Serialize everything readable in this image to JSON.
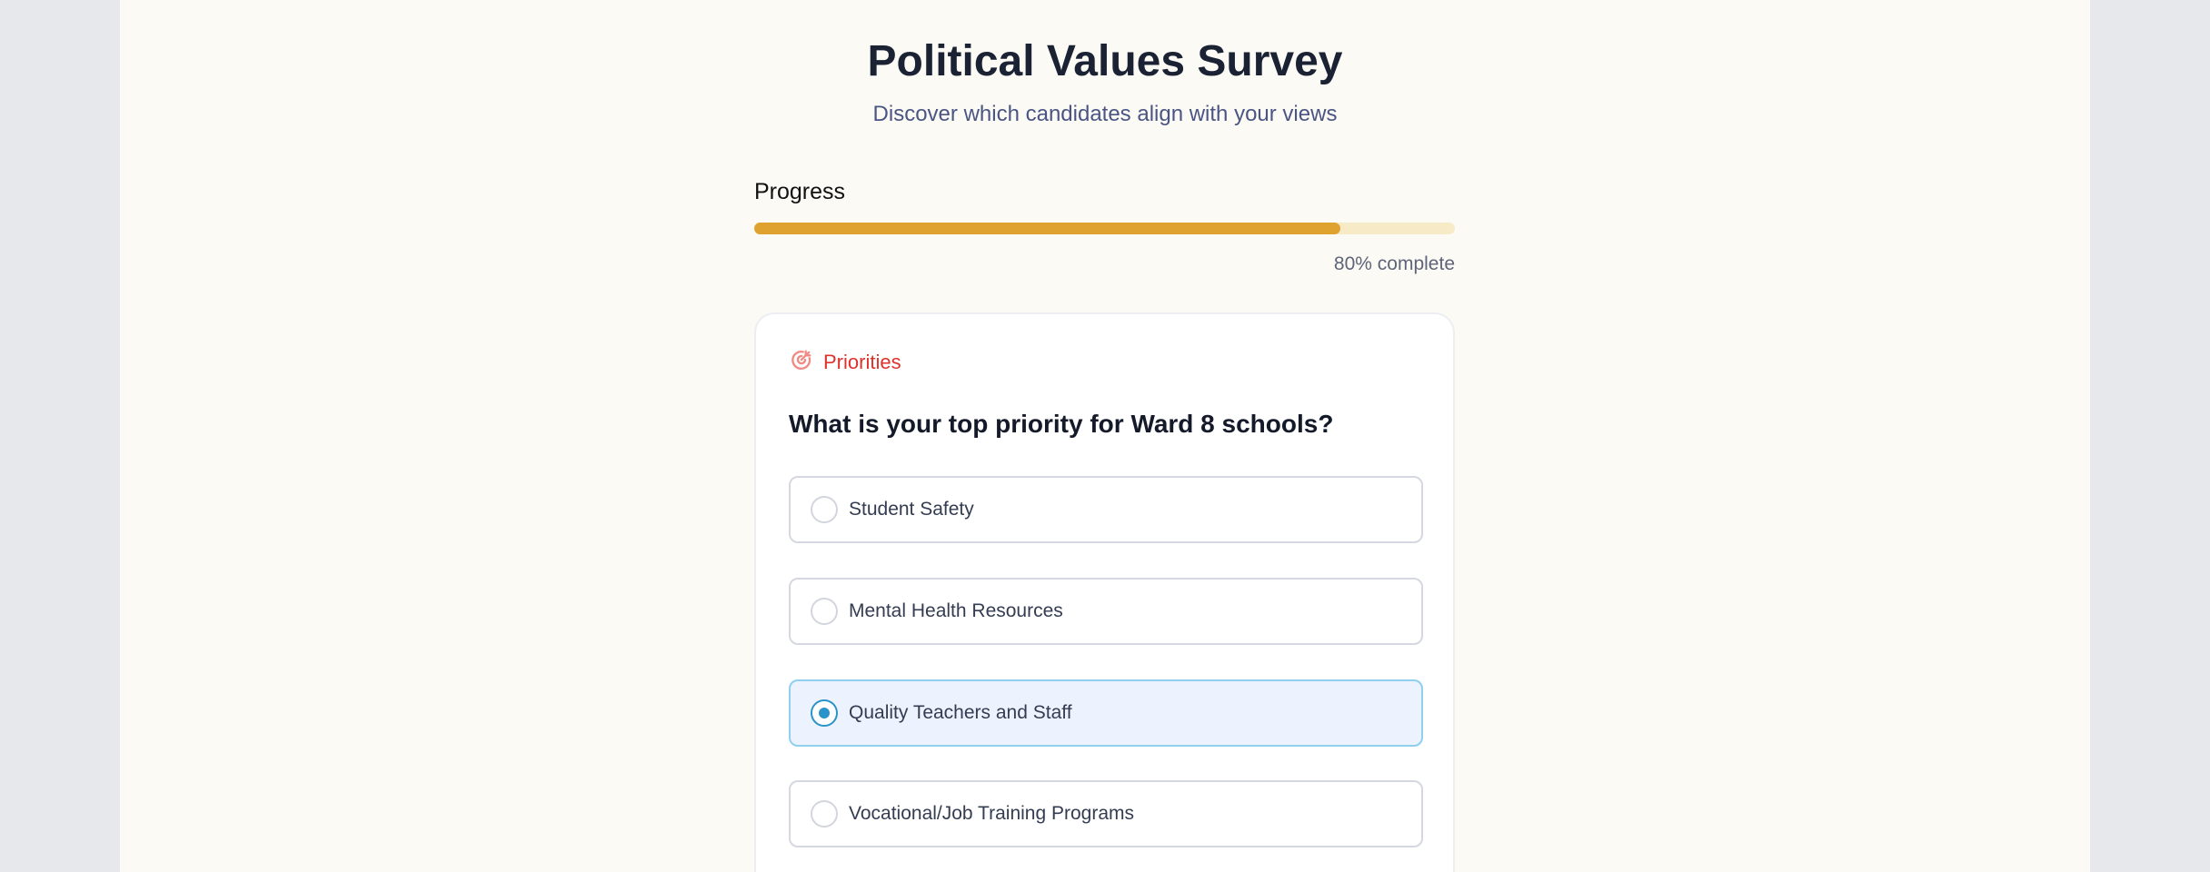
{
  "header": {
    "title": "Political Values Survey",
    "subtitle": "Discover which candidates align with your views"
  },
  "progress": {
    "label": "Progress",
    "percent": 80,
    "text": "80% complete",
    "fill_color": "#e0a22f",
    "track_color": "#f7ebc7"
  },
  "question": {
    "category": "Priorities",
    "category_icon": "target-icon",
    "category_color": "#e0322d",
    "text": "What is your top priority for Ward 8 schools?",
    "options": [
      {
        "label": "Student Safety",
        "selected": false
      },
      {
        "label": "Mental Health Resources",
        "selected": false
      },
      {
        "label": "Quality Teachers and Staff",
        "selected": true
      },
      {
        "label": "Vocational/Job Training Programs",
        "selected": false
      }
    ]
  }
}
